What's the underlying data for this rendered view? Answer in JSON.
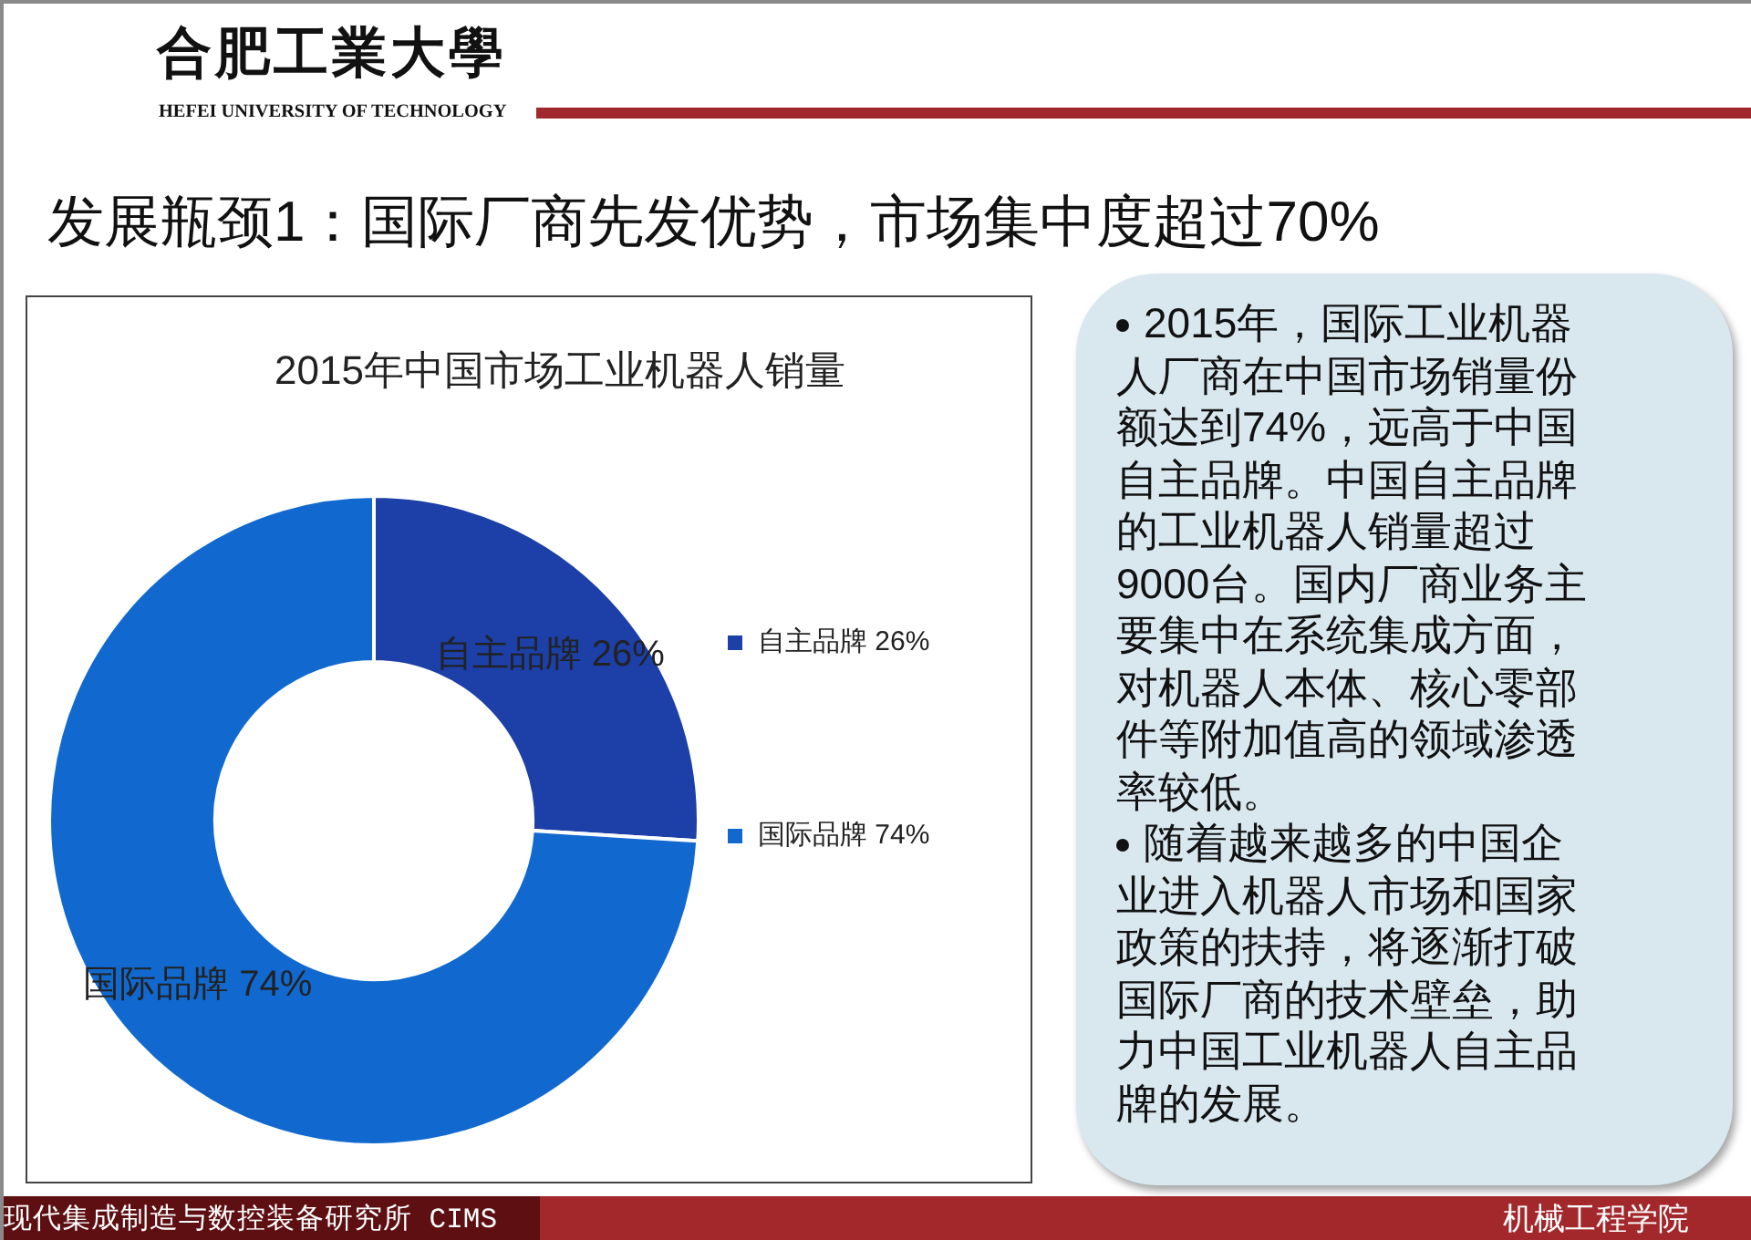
{
  "chart_data": {
    "type": "donut",
    "title": "2015年中国市场工业机器人销量",
    "categories": [
      "自主品牌 26%",
      "国际品牌 74%"
    ],
    "values": [
      26,
      74
    ],
    "colors": [
      "#1c3fa8",
      "#1169cf"
    ],
    "value_labels": [
      "自主品牌 26%",
      "国际品牌 74%"
    ],
    "legend": "right",
    "annotations": [
      "合肥工業大學",
      "HEFEI UNIVERSITY OF TECHNOLOGY",
      "发展瓶颈1：国际厂商先发优势，市场集中度超过70%",
      "2015年，国际工业机器人厂商在中国市场销量份额达到74%，远高于中国自主品牌。中国自主品牌的工业机器人销量超过9000台。国内厂商业务主要集中在系统集成方面，对机器人本体、核心零部件等附加值高的领域渗透率较低。",
      "随着越来越多的中国企业进入机器人市场和国家政策的扶持，将逐渐打破国际厂商的技术壁垒，助力中国工业机器人自主品牌的发展。",
      "现代集成制造与数控装备研究所 CIMS",
      "机械工程学院"
    ]
  }
}
